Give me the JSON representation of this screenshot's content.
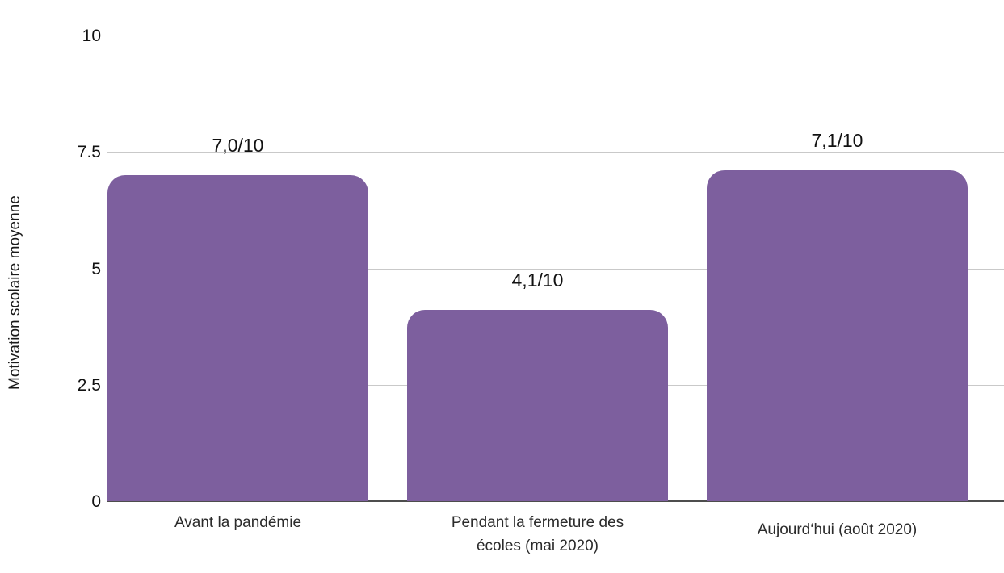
{
  "chart_data": {
    "type": "bar",
    "title": "",
    "ylabel": "Motivation scolaire moyenne",
    "xlabel": "",
    "categories": [
      "Avant la pandémie",
      "Pendant la fermeture des écoles (mai 2020)",
      "Aujourd‘hui (août 2020)"
    ],
    "values": [
      7.0,
      4.1,
      7.1
    ],
    "value_labels": [
      "7,0/10",
      "4,1/10",
      "7,1/10"
    ],
    "ylim": [
      0,
      10
    ],
    "yticks": [
      0,
      2.5,
      5,
      7.5,
      10
    ],
    "ytick_labels": [
      "0",
      "2.5",
      "5",
      "7.5",
      "10"
    ],
    "grid": "horizontal",
    "legend": "none",
    "colors": {
      "bar": "#7d5f9e",
      "gridline": "#c9c9c9",
      "baseline": "#4d4d4d",
      "tick_text": "#111111",
      "category_text": "#2b2b2b"
    }
  }
}
